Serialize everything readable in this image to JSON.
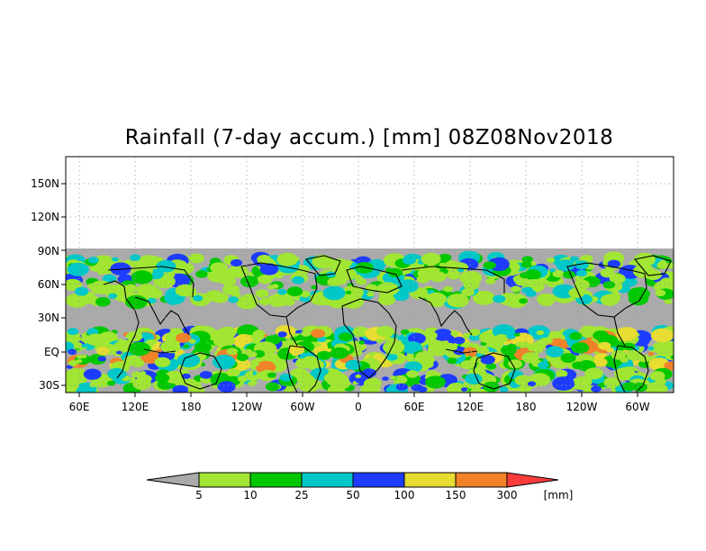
{
  "title": "Rainfall (7-day accum.) [mm] 08Z08Nov2018",
  "lat_labels": [
    "150N",
    "120N",
    "90N",
    "60N",
    "30N",
    "EQ",
    "30S"
  ],
  "lon_labels": [
    "60E",
    "120E",
    "180",
    "120W",
    "60W",
    "0",
    "60E",
    "120E",
    "180",
    "120W",
    "60W"
  ],
  "colorbar": {
    "thresholds": [
      "5",
      "10",
      "25",
      "50",
      "100",
      "150",
      "300"
    ],
    "units": "[mm]",
    "colors": [
      "#aaaaaa",
      "#a0e632",
      "#00c800",
      "#00c8c8",
      "#1e3cff",
      "#e6dc32",
      "#f08228",
      "#fa3c3c"
    ]
  },
  "colors": {
    "land_no_rain": "#aaaaaa",
    "frame": "#000000",
    "grid": "#999999"
  }
}
